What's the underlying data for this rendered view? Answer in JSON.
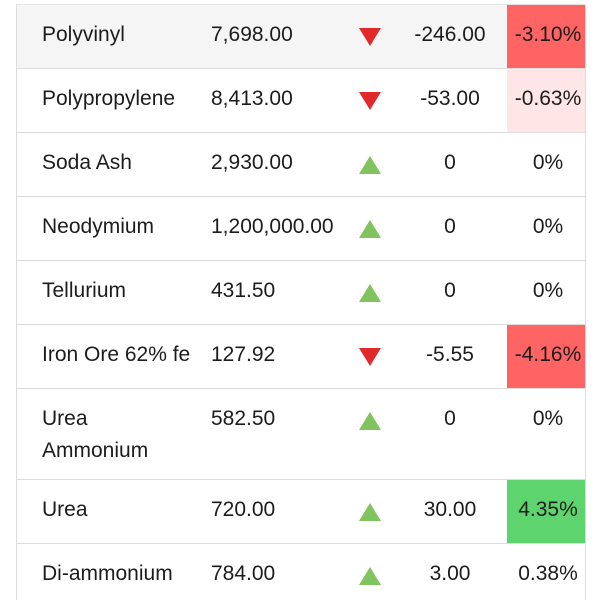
{
  "colors": {
    "down_arrow": "#e02a2a",
    "up_arrow": "#7fc45d",
    "neg_strong": "#ff6464",
    "neg_light": "#ffe6e6",
    "pos_strong": "#5ed46e"
  },
  "rows": [
    {
      "name": "Polyvinyl",
      "price": "7,698.00",
      "direction": "down",
      "change": "-246.00",
      "pct": "-3.10%",
      "pct_style": "neg-strong"
    },
    {
      "name": "Polypropylene",
      "price": "8,413.00",
      "direction": "down",
      "change": "-53.00",
      "pct": "-0.63%",
      "pct_style": "neg-light"
    },
    {
      "name": "Soda Ash",
      "price": "2,930.00",
      "direction": "up",
      "change": "0",
      "pct": "0%",
      "pct_style": ""
    },
    {
      "name": "Neodymium",
      "price": "1,200,000.00",
      "direction": "up",
      "change": "0",
      "pct": "0%",
      "pct_style": ""
    },
    {
      "name": "Tellurium",
      "price": "431.50",
      "direction": "up",
      "change": "0",
      "pct": "0%",
      "pct_style": ""
    },
    {
      "name": "Iron Ore 62% fe",
      "price": "127.92",
      "direction": "down",
      "change": "-5.55",
      "pct": "-4.16%",
      "pct_style": "neg-strong"
    },
    {
      "name": "Urea Ammonium",
      "price": "582.50",
      "direction": "up",
      "change": "0",
      "pct": "0%",
      "pct_style": ""
    },
    {
      "name": "Urea",
      "price": "720.00",
      "direction": "up",
      "change": "30.00",
      "pct": "4.35%",
      "pct_style": "pos-strong"
    },
    {
      "name": "Di-ammonium",
      "price": "784.00",
      "direction": "up",
      "change": "3.00",
      "pct": "0.38%",
      "pct_style": ""
    }
  ]
}
